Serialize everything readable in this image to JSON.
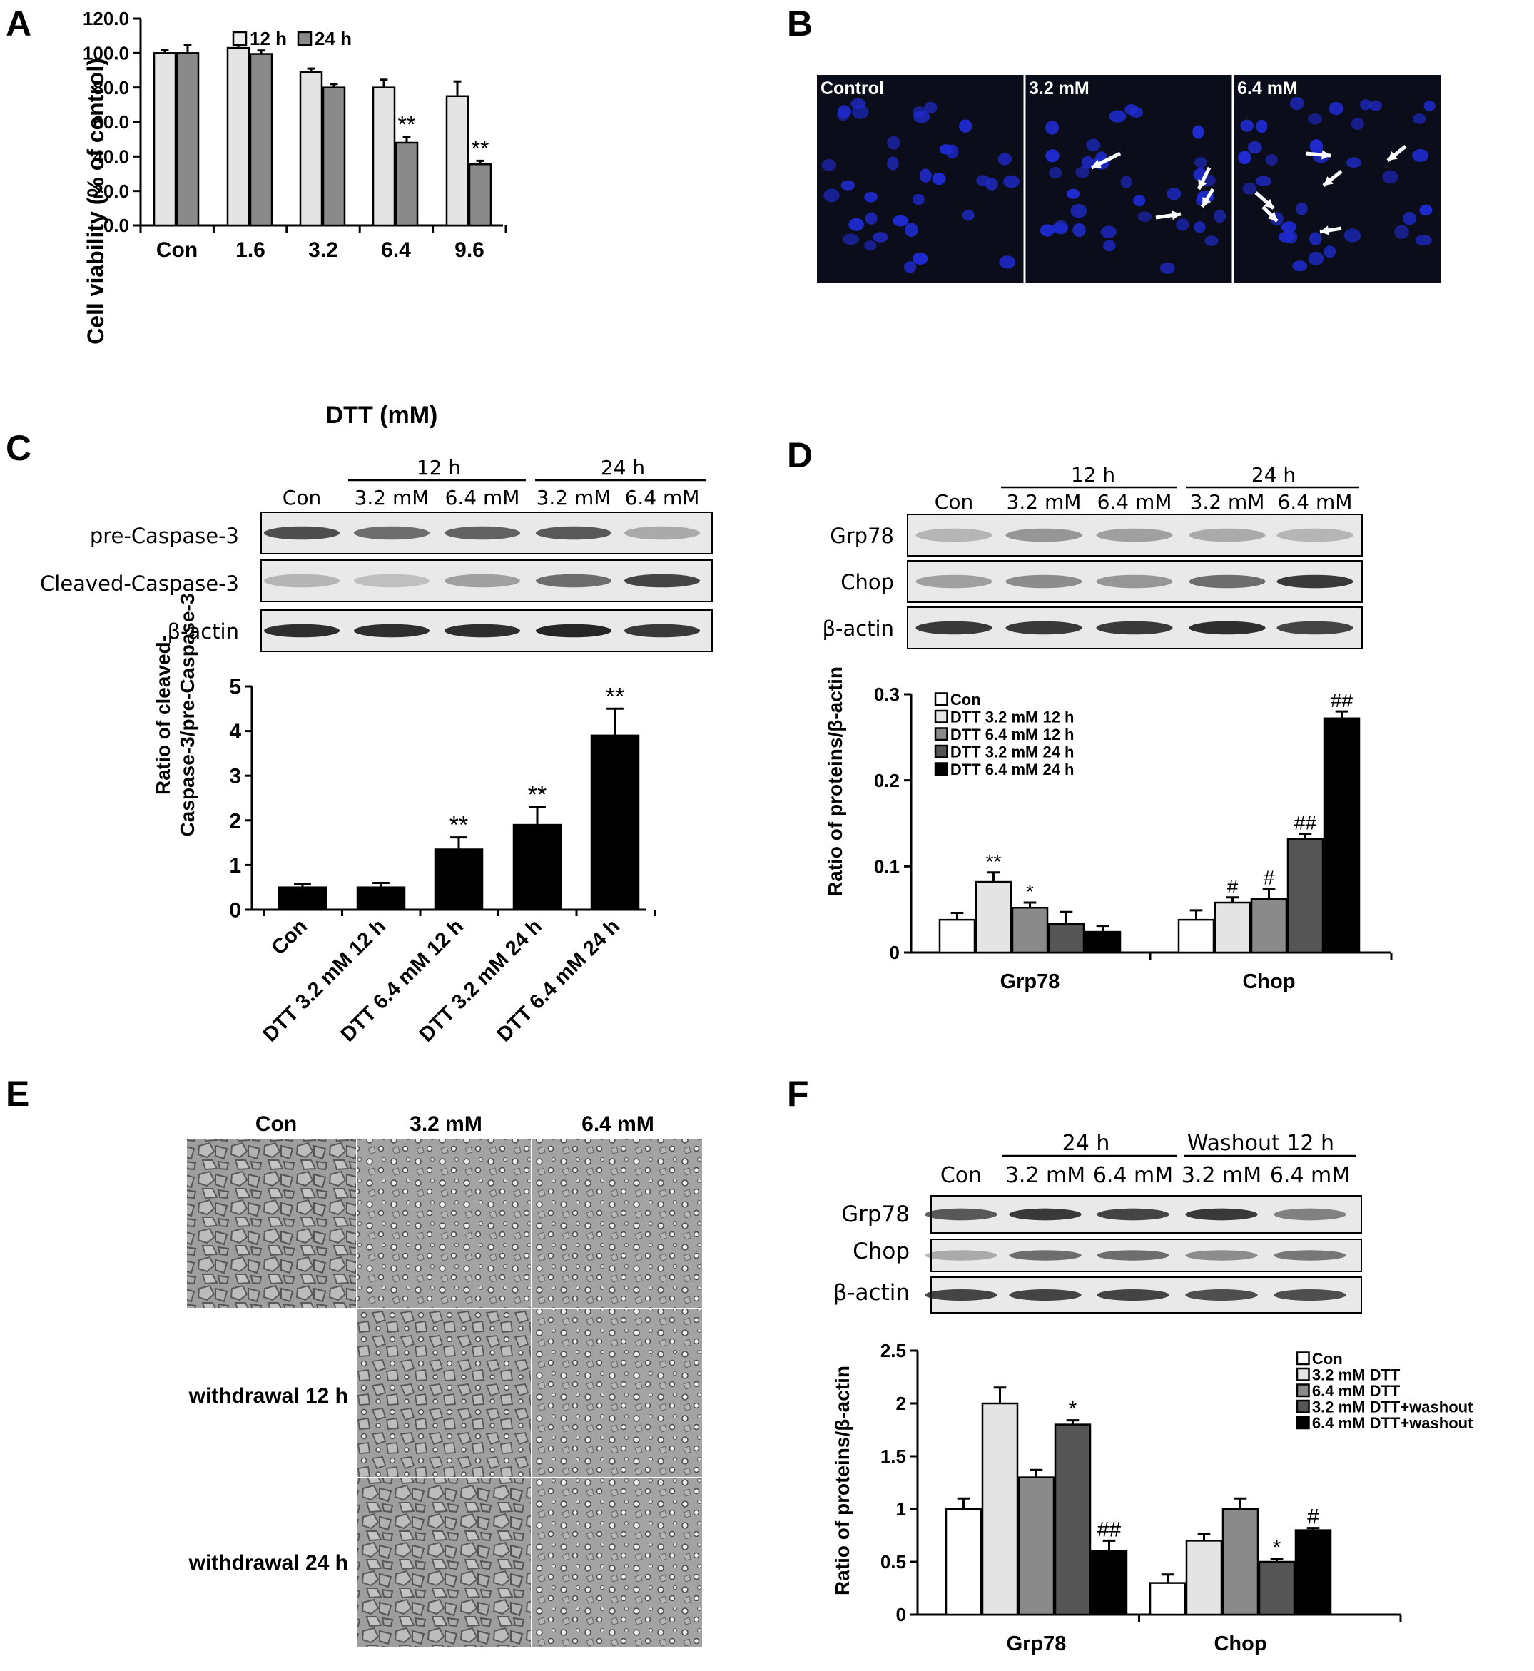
{
  "panel_letters": [
    "A",
    "B",
    "C",
    "D",
    "E",
    "F"
  ],
  "colors": {
    "white": "#ffffff",
    "light": "#e4e4e4",
    "mid": "#8a8a8a",
    "dark": "#555555",
    "black": "#000000",
    "nucleus": "#1f2bd0",
    "field": "#0b0d1a"
  },
  "panelA": {
    "legend": [
      "12 h",
      "24 h"
    ],
    "xlabel": "DTT (mM)",
    "ylabel": "Cell viability (% of control)",
    "yticks": [
      "0.0",
      "20.0",
      "40.0",
      "60.0",
      "80.0",
      "100.0",
      "120.0"
    ]
  },
  "panelB": {
    "labels": [
      "Control",
      "3.2 mM",
      "6.4 mM"
    ]
  },
  "panelC": {
    "time_headers": [
      "12 h",
      "24 h"
    ],
    "lane_labels": [
      "Con",
      "3.2 mM",
      "6.4 mM",
      "3.2 mM",
      "6.4 mM"
    ],
    "blot_labels": [
      "pre-Caspase-3",
      "Cleaved-Caspase-3",
      "β-actin"
    ],
    "ylabel_line1": "Ratio of cleaved-",
    "ylabel_line2": "Caspase-3/pre-Caspase-3",
    "yticks": [
      "0",
      "1",
      "2",
      "3",
      "4",
      "5"
    ]
  },
  "panelD": {
    "time_headers": [
      "12 h",
      "24 h"
    ],
    "lane_labels": [
      "Con",
      "3.2 mM",
      "6.4 mM",
      "3.2 mM",
      "6.4 mM"
    ],
    "blot_labels": [
      "Grp78",
      "Chop",
      "β-actin"
    ],
    "ylabel": "Ratio of proteins/β-actin",
    "yticks": [
      "0",
      "0.1",
      "0.2",
      "0.3"
    ]
  },
  "panelE": {
    "col_headers": [
      "Con",
      "3.2 mM",
      "6.4 mM"
    ],
    "row_labels": [
      "withdrawal 12 h",
      "withdrawal 24 h"
    ]
  },
  "panelF": {
    "group_headers": [
      "24 h",
      "Washout 12 h"
    ],
    "lane_labels": [
      "Con",
      "3.2 mM",
      "6.4 mM",
      "3.2 mM",
      "6.4 mM"
    ],
    "blot_labels": [
      "Grp78",
      "Chop",
      "β-actin"
    ],
    "ylabel": "Ratio of proteins/β-actin",
    "yticks": [
      "0",
      "0.5",
      "1",
      "1.5",
      "2",
      "2.5"
    ]
  },
  "chart_data": [
    {
      "panel": "A",
      "type": "bar",
      "categories": [
        "Con",
        "1.6",
        "3.2",
        "6.4",
        "9.6"
      ],
      "series": [
        {
          "name": "12 h",
          "values": [
            100,
            103,
            89,
            80,
            75
          ],
          "errors": [
            2,
            4,
            2,
            4.5,
            8.5
          ],
          "annotations": [
            "",
            "",
            "",
            "",
            ""
          ]
        },
        {
          "name": "24 h",
          "values": [
            100,
            99.5,
            80,
            48,
            35.5
          ],
          "errors": [
            4.5,
            2,
            2,
            3.5,
            2
          ],
          "annotations": [
            "",
            "",
            "",
            "**",
            "**"
          ]
        }
      ],
      "xlabel": "DTT (mM)",
      "ylabel": "Cell viability (% of control)",
      "ylim": [
        0,
        120
      ],
      "legend": "top-left"
    },
    {
      "panel": "C",
      "type": "bar",
      "categories": [
        "Con",
        "DTT 3.2 mM 12 h",
        "DTT 6.4 mM 12 h",
        "DTT 3.2 mM 24 h",
        "DTT 6.4 mM 24 h"
      ],
      "values": [
        0.5,
        0.5,
        1.35,
        1.9,
        3.9
      ],
      "errors": [
        0.08,
        0.1,
        0.27,
        0.4,
        0.6
      ],
      "annotations": [
        "",
        "",
        "**",
        "**",
        "**"
      ],
      "ylabel": "Ratio of cleaved-Caspase-3/pre-Caspase-3",
      "ylim": [
        0,
        5
      ]
    },
    {
      "panel": "D",
      "type": "bar",
      "categories": [
        "Grp78",
        "Chop"
      ],
      "series": [
        {
          "name": "Con",
          "values": [
            0.038,
            0.038
          ],
          "errors": [
            0.008,
            0.011
          ],
          "annotations": [
            "",
            ""
          ]
        },
        {
          "name": "DTT 3.2 mM 12 h",
          "values": [
            0.082,
            0.058
          ],
          "errors": [
            0.011,
            0.006
          ],
          "annotations": [
            "**",
            "#"
          ]
        },
        {
          "name": "DTT 6.4 mM 12 h",
          "values": [
            0.052,
            0.062
          ],
          "errors": [
            0.006,
            0.012
          ],
          "annotations": [
            "*",
            "#"
          ]
        },
        {
          "name": "DTT 3.2 mM 24 h",
          "values": [
            0.033,
            0.132
          ],
          "errors": [
            0.014,
            0.006
          ],
          "annotations": [
            "",
            "##"
          ]
        },
        {
          "name": "DTT 6.4 mM 24 h",
          "values": [
            0.024,
            0.272
          ],
          "errors": [
            0.007,
            0.008
          ],
          "annotations": [
            "",
            "##"
          ]
        }
      ],
      "ylabel": "Ratio of proteins/β-actin",
      "ylim": [
        0,
        0.3
      ],
      "legend": "top-left"
    },
    {
      "panel": "F",
      "type": "bar",
      "categories": [
        "Grp78",
        "Chop"
      ],
      "series": [
        {
          "name": "Con",
          "values": [
            1.0,
            0.3
          ],
          "errors": [
            0.1,
            0.08
          ],
          "annotations": [
            "",
            ""
          ]
        },
        {
          "name": "3.2 mM DTT",
          "values": [
            2.0,
            0.7
          ],
          "errors": [
            0.15,
            0.06
          ],
          "annotations": [
            "",
            ""
          ]
        },
        {
          "name": "6.4 mM DTT",
          "values": [
            1.3,
            1.0
          ],
          "errors": [
            0.07,
            0.1
          ],
          "annotations": [
            "",
            ""
          ]
        },
        {
          "name": "3.2 mM DTT+washout",
          "values": [
            1.8,
            0.5
          ],
          "errors": [
            0.04,
            0.03
          ],
          "annotations": [
            "*",
            "*"
          ]
        },
        {
          "name": "6.4 mM DTT+washout",
          "values": [
            0.6,
            0.8
          ],
          "errors": [
            0.1,
            0.02
          ],
          "annotations": [
            "##",
            "#"
          ]
        }
      ],
      "ylabel": "Ratio of proteins/β-actin",
      "ylim": [
        0,
        2.5
      ],
      "legend": "top-right"
    }
  ]
}
